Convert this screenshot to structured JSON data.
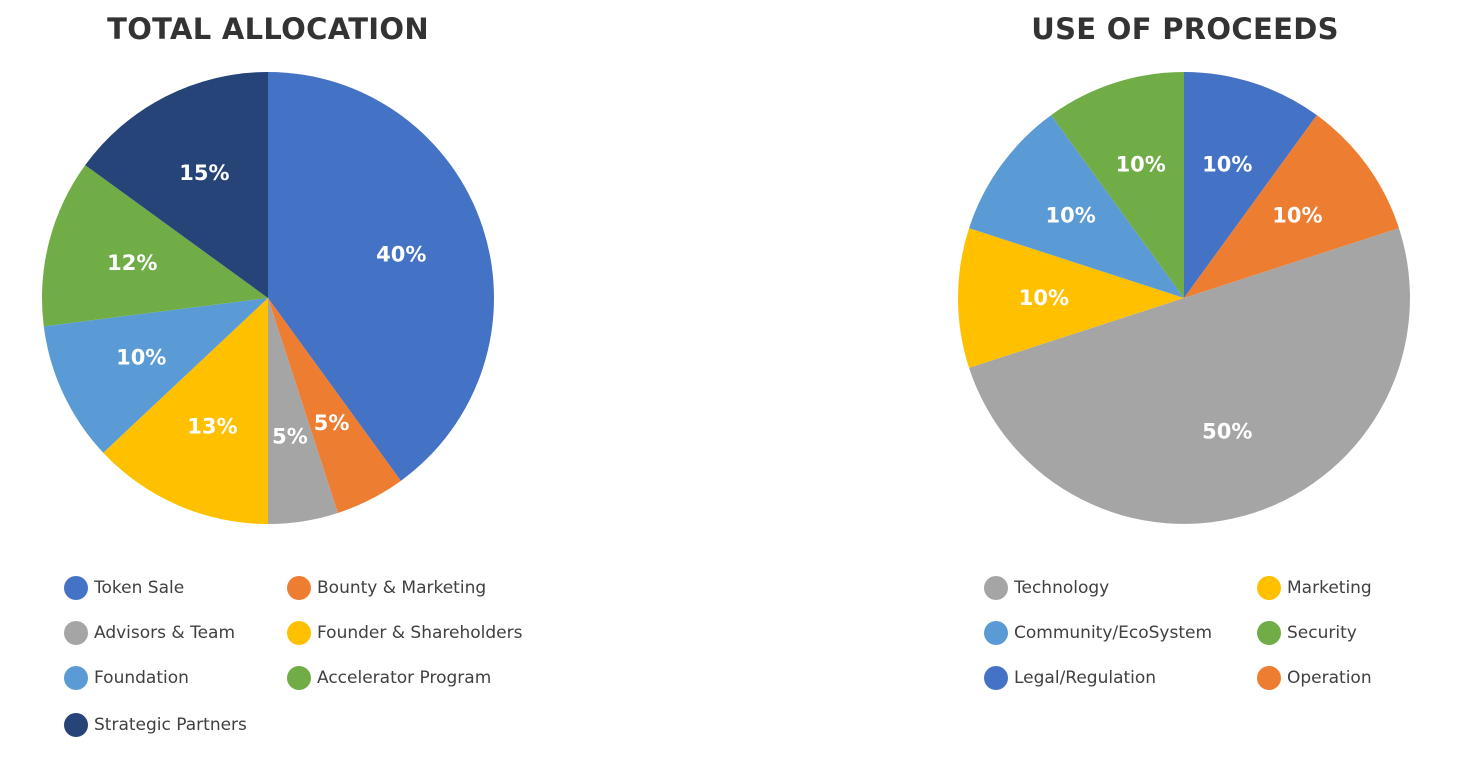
{
  "chart_data": [
    {
      "type": "pie",
      "title": "TOTAL ALLOCATION",
      "slices": [
        {
          "name": "Token Sale",
          "value": 40,
          "label": "40%",
          "color": "#4472C4"
        },
        {
          "name": "Bounty & Marketing",
          "value": 5,
          "label": "5%",
          "color": "#ED7D31"
        },
        {
          "name": "Advisors & Team",
          "value": 5,
          "label": "5%",
          "color": "#A5A5A5"
        },
        {
          "name": "Founder & Shareholders",
          "value": 13,
          "label": "13%",
          "color": "#FFC000"
        },
        {
          "name": "Foundation",
          "value": 10,
          "label": "10%",
          "color": "#5B9BD5"
        },
        {
          "name": "Accelerator Program",
          "value": 12,
          "label": "12%",
          "color": "#70AD47"
        },
        {
          "name": "Strategic Partners",
          "value": 15,
          "label": "15%",
          "color": "#264478"
        }
      ],
      "legend_order": [
        "Token Sale",
        "Bounty & Marketing",
        "Advisors & Team",
        "Founder & Shareholders",
        "Foundation",
        "Accelerator Program",
        "Strategic Partners"
      ],
      "legend_position": "bottom"
    },
    {
      "type": "pie",
      "title": "USE OF PROCEEDS",
      "slices": [
        {
          "name": "Legal/Regulation",
          "value": 10,
          "label": "10%",
          "color": "#4472C4"
        },
        {
          "name": "Operation",
          "value": 10,
          "label": "10%",
          "color": "#ED7D31"
        },
        {
          "name": "Technology",
          "value": 50,
          "label": "50%",
          "color": "#A5A5A5"
        },
        {
          "name": "Marketing",
          "value": 10,
          "label": "10%",
          "color": "#FFC000"
        },
        {
          "name": "Community/EcoSystem",
          "value": 10,
          "label": "10%",
          "color": "#5B9BD5"
        },
        {
          "name": "Security",
          "value": 10,
          "label": "10%",
          "color": "#70AD47"
        }
      ],
      "legend_order": [
        "Technology",
        "Marketing",
        "Community/EcoSystem",
        "Security",
        "Legal/Regulation",
        "Operation"
      ],
      "legend_position": "bottom"
    }
  ]
}
